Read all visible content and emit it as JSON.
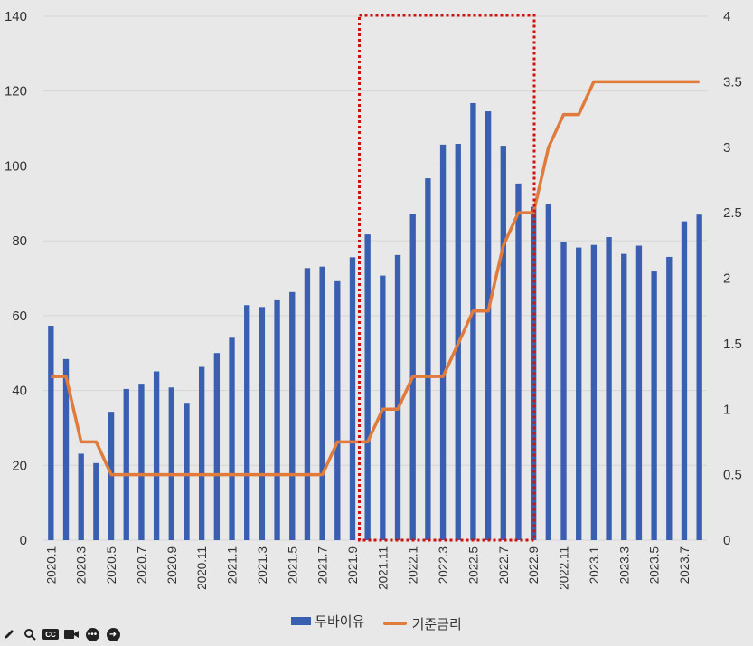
{
  "chart_data": {
    "type": "bar+line",
    "categories": [
      "2020.1",
      "2020.2",
      "2020.3",
      "2020.4",
      "2020.5",
      "2020.6",
      "2020.7",
      "2020.8",
      "2020.9",
      "2020.10",
      "2020.11",
      "2020.12",
      "2021.1",
      "2021.2",
      "2021.3",
      "2021.4",
      "2021.5",
      "2021.6",
      "2021.7",
      "2021.8",
      "2021.9",
      "2021.10",
      "2021.11",
      "2021.12",
      "2022.1",
      "2022.2",
      "2022.3",
      "2022.4",
      "2022.5",
      "2022.6",
      "2022.7",
      "2022.8",
      "2022.9",
      "2022.10",
      "2022.11",
      "2022.12",
      "2023.1",
      "2023.2",
      "2023.3",
      "2023.4",
      "2023.5",
      "2023.6",
      "2023.7",
      "2023.8"
    ],
    "x_tick_labels": [
      "2020.1",
      "2020.3",
      "2020.5",
      "2020.7",
      "2020.9",
      "2020.11",
      "2021.1",
      "2021.3",
      "2021.5",
      "2021.7",
      "2021.9",
      "2021.11",
      "2022.1",
      "2022.3",
      "2022.5",
      "2022.7",
      "2022.9",
      "2022.11",
      "2023.1",
      "2023.3",
      "2023.5",
      "2023.7"
    ],
    "series": [
      {
        "name": "두바이유",
        "type": "bar",
        "axis": "left",
        "color": "#3a5fb0",
        "values": [
          57.3,
          48.4,
          23.1,
          20.6,
          34.3,
          40.4,
          41.8,
          45.1,
          40.8,
          36.7,
          46.3,
          50.0,
          54.1,
          62.8,
          62.3,
          64.1,
          66.3,
          72.7,
          73.1,
          69.2,
          75.6,
          81.7,
          70.7,
          76.2,
          87.2,
          96.7,
          105.7,
          105.9,
          116.8,
          114.6,
          105.4,
          95.3,
          89.1,
          89.7,
          79.8,
          78.2,
          78.9,
          81.0,
          76.5,
          78.7,
          71.8,
          75.7,
          85.2,
          87.0
        ]
      },
      {
        "name": "기준금리",
        "type": "line",
        "axis": "right",
        "color": "#e07b3c",
        "values": [
          1.25,
          1.25,
          0.75,
          0.75,
          0.5,
          0.5,
          0.5,
          0.5,
          0.5,
          0.5,
          0.5,
          0.5,
          0.5,
          0.5,
          0.5,
          0.5,
          0.5,
          0.5,
          0.5,
          0.75,
          0.75,
          0.75,
          1.0,
          1.0,
          1.25,
          1.25,
          1.25,
          1.5,
          1.75,
          1.75,
          2.25,
          2.5,
          2.5,
          3.0,
          3.25,
          3.25,
          3.5,
          3.5,
          3.5,
          3.5,
          3.5,
          3.5,
          3.5,
          3.5
        ]
      }
    ],
    "y_left": {
      "min": 0,
      "max": 140,
      "ticks": [
        "0",
        "20",
        "40",
        "60",
        "80",
        "100",
        "120",
        "140"
      ]
    },
    "y_right": {
      "min": 0,
      "max": 4,
      "ticks": [
        "0",
        "0.5",
        "1",
        "1.5",
        "2",
        "2.5",
        "3",
        "3.5",
        "4"
      ]
    },
    "grid": true,
    "legend": [
      "두바이유",
      "기준금리"
    ],
    "legend_position": "bottom-center",
    "highlight_box": {
      "from": "2021.10",
      "to": "2022.9",
      "color": "#cc1111",
      "style": "dotted"
    }
  },
  "toolbar": {
    "items": [
      "pencil-icon",
      "magnifier-icon",
      "cc-icon",
      "camera-icon",
      "more-icon",
      "arrow-icon"
    ],
    "cc_label": "CC"
  }
}
